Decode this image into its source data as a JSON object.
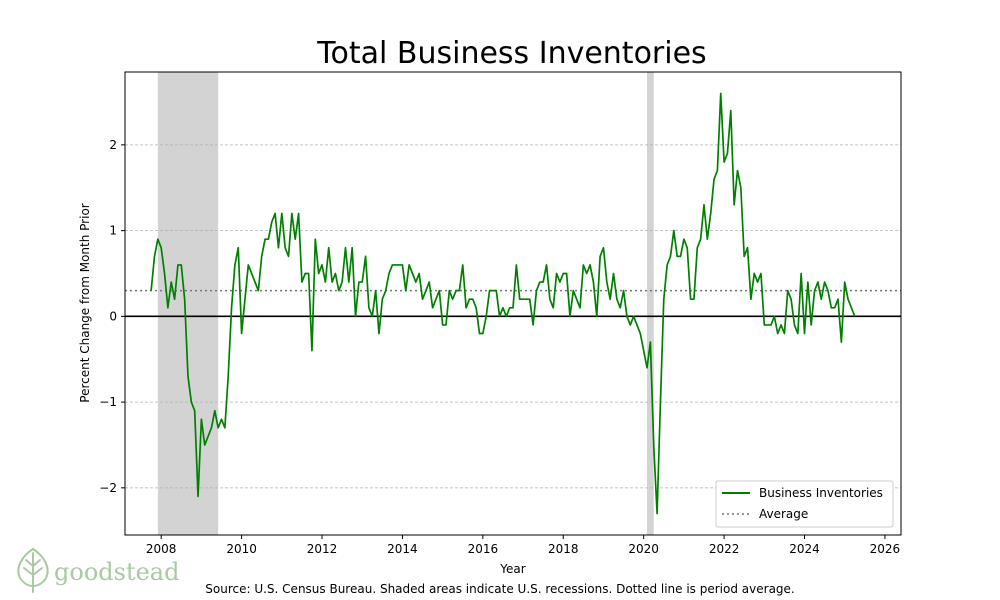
{
  "chart_data": {
    "type": "line",
    "title": "Total Business Inventories",
    "xlabel": "Year",
    "ylabel": "Percent Change from Month Prior",
    "xlim": [
      2007.1,
      2026.4
    ],
    "ylim": [
      -2.55,
      2.85
    ],
    "x_ticks": [
      2008,
      2010,
      2012,
      2014,
      2016,
      2018,
      2020,
      2022,
      2024,
      2026
    ],
    "y_ticks": [
      -2,
      -1,
      0,
      1,
      2
    ],
    "grid": "horizontal-dashed",
    "legend_position": "bottom-right",
    "recessions": [
      {
        "start": 2007.917,
        "end": 2009.417
      },
      {
        "start": 2020.083,
        "end": 2020.25
      }
    ],
    "average": {
      "name": "Average",
      "value": 0.3
    },
    "series": [
      {
        "name": "Business Inventories",
        "color": "#008000",
        "start_year": 2007.75,
        "step_months": 1,
        "values": [
          0.3,
          0.7,
          0.9,
          0.8,
          0.5,
          0.1,
          0.4,
          0.2,
          0.6,
          0.6,
          0.2,
          -0.7,
          -1.0,
          -1.1,
          -2.1,
          -1.2,
          -1.5,
          -1.4,
          -1.3,
          -1.1,
          -1.3,
          -1.2,
          -1.3,
          -0.7,
          0.1,
          0.6,
          0.8,
          -0.2,
          0.2,
          0.6,
          0.5,
          0.4,
          0.3,
          0.7,
          0.9,
          0.9,
          1.1,
          1.2,
          0.8,
          1.2,
          0.8,
          0.7,
          1.2,
          0.9,
          1.2,
          0.4,
          0.5,
          0.5,
          -0.4,
          0.9,
          0.5,
          0.6,
          0.4,
          0.8,
          0.4,
          0.5,
          0.3,
          0.4,
          0.8,
          0.4,
          0.8,
          0.0,
          0.4,
          0.4,
          0.7,
          0.1,
          0.0,
          0.3,
          -0.2,
          0.2,
          0.3,
          0.5,
          0.6,
          0.6,
          0.6,
          0.6,
          0.3,
          0.6,
          0.5,
          0.4,
          0.5,
          0.2,
          0.3,
          0.4,
          0.1,
          0.2,
          0.3,
          -0.1,
          -0.1,
          0.3,
          0.2,
          0.3,
          0.3,
          0.6,
          0.1,
          0.2,
          0.2,
          0.1,
          -0.2,
          -0.2,
          0.0,
          0.3,
          0.3,
          0.3,
          0.0,
          0.1,
          0.0,
          0.1,
          0.1,
          0.6,
          0.2,
          0.2,
          0.2,
          0.2,
          -0.1,
          0.3,
          0.4,
          0.4,
          0.6,
          0.2,
          0.1,
          0.5,
          0.4,
          0.5,
          0.5,
          0.0,
          0.3,
          0.2,
          0.1,
          0.6,
          0.5,
          0.6,
          0.4,
          0.0,
          0.7,
          0.8,
          0.4,
          0.2,
          0.5,
          0.2,
          0.1,
          0.3,
          0.0,
          -0.1,
          0.0,
          -0.1,
          -0.2,
          -0.4,
          -0.6,
          -0.3,
          -1.5,
          -2.3,
          -1.0,
          0.2,
          0.6,
          0.7,
          1.0,
          0.7,
          0.7,
          0.9,
          0.8,
          0.2,
          0.2,
          0.8,
          0.9,
          1.3,
          0.9,
          1.2,
          1.6,
          1.7,
          2.6,
          1.8,
          1.9,
          2.4,
          1.3,
          1.7,
          1.5,
          0.7,
          0.8,
          0.2,
          0.5,
          0.4,
          0.5,
          -0.1,
          -0.1,
          -0.1,
          0.0,
          -0.2,
          -0.1,
          -0.2,
          0.3,
          0.2,
          -0.1,
          -0.2,
          0.5,
          -0.2,
          0.4,
          -0.1,
          0.3,
          0.4,
          0.2,
          0.4,
          0.3,
          0.1,
          0.1,
          0.2,
          -0.3,
          0.4,
          0.2,
          0.1,
          0.0
        ]
      }
    ],
    "source": "Source: U.S. Census Bureau. Shaded areas indicate U.S. recessions. Dotted line is period average."
  },
  "brand": {
    "name": "goodstead",
    "icon": "tree-icon",
    "color": "#a9c9a3"
  }
}
